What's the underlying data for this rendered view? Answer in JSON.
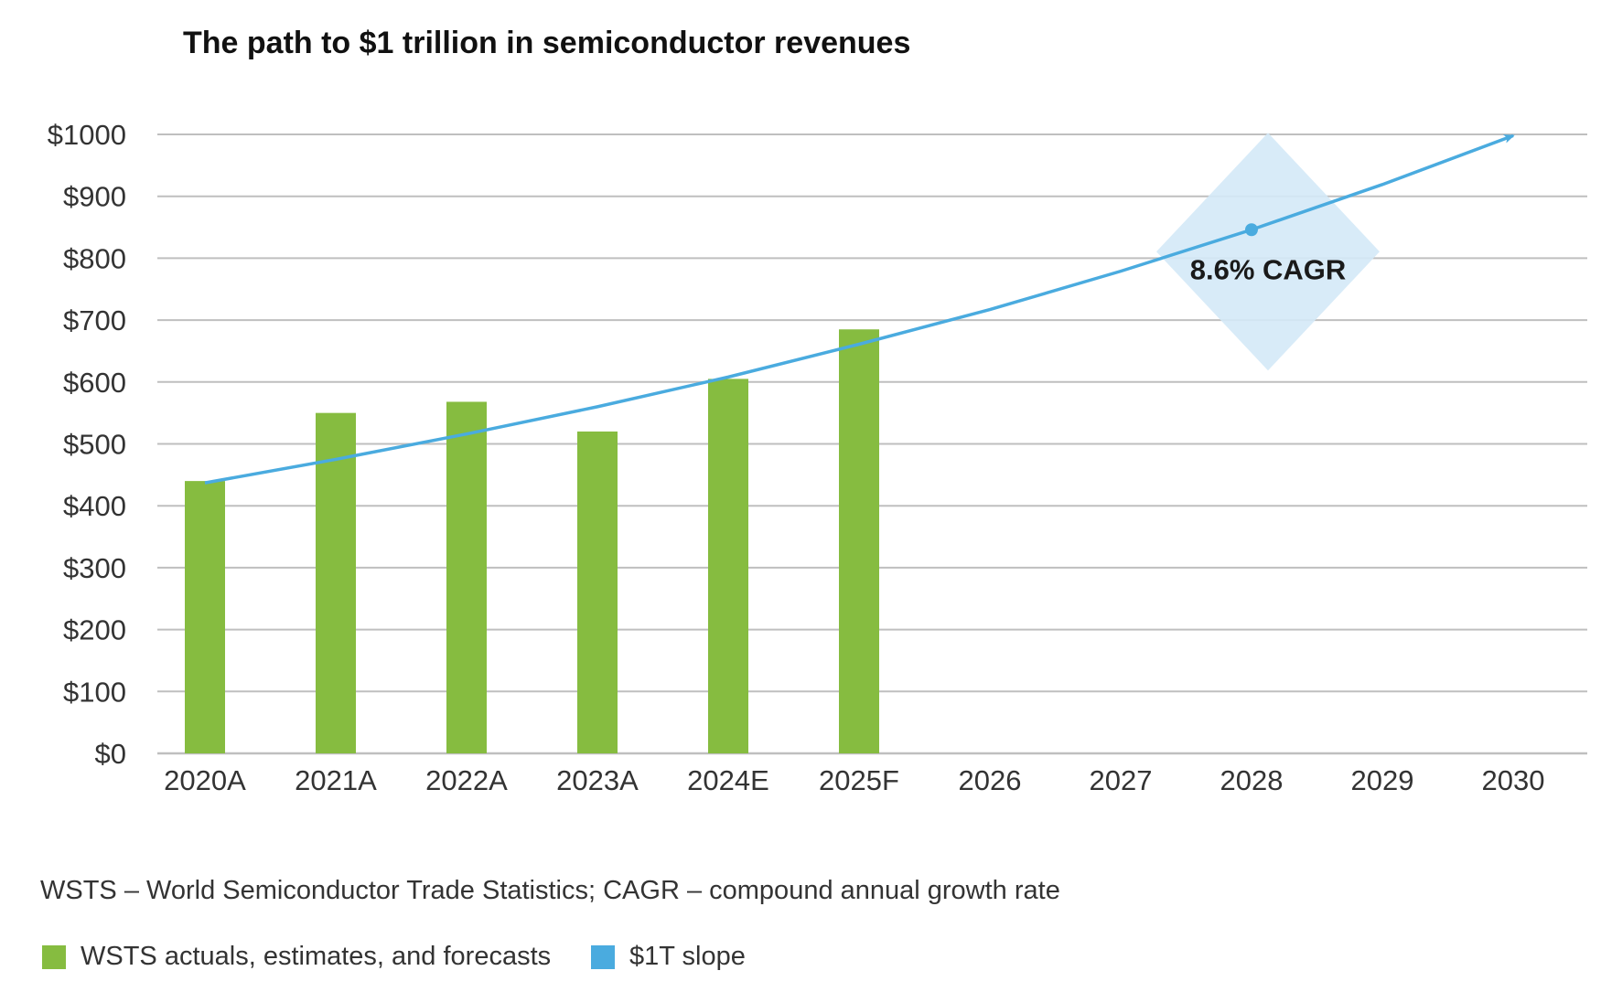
{
  "chart_data": {
    "type": "bar",
    "title": "The path to $1 trillion in semiconductor revenues",
    "categories": [
      "2020A",
      "2021A",
      "2022A",
      "2023A",
      "2024E",
      "2025F",
      "2026",
      "2027",
      "2028",
      "2029",
      "2030"
    ],
    "y_tick_labels": [
      "$0",
      "$100",
      "$200",
      "$300",
      "$400",
      "$500",
      "$600",
      "$700",
      "$800",
      "$900",
      "$1000"
    ],
    "ylim": [
      0,
      1000
    ],
    "grid": true,
    "series": [
      {
        "name": "WSTS actuals, estimates, and forecasts",
        "type": "bar",
        "color": "#86BC40",
        "values": [
          440,
          550,
          568,
          520,
          605,
          685,
          null,
          null,
          null,
          null,
          null
        ]
      },
      {
        "name": "$1T slope",
        "type": "line",
        "color": "#4AABDF",
        "values": [
          437,
          475,
          516,
          560,
          608,
          661,
          717,
          779,
          846,
          919,
          998
        ]
      }
    ],
    "annotation": {
      "text": "8.6% CAGR",
      "category": "2028",
      "value": 846
    },
    "legend_position": "bottom-left"
  },
  "footnote": "WSTS – World Semiconductor Trade Statistics; CAGR – compound annual growth rate",
  "legend": [
    {
      "label": "WSTS actuals, estimates, and forecasts",
      "color": "#86BC40"
    },
    {
      "label": "$1T slope",
      "color": "#4AABDF"
    }
  ],
  "colors": {
    "grid": "#bfbfbf",
    "axis_text": "#333333",
    "highlight": "#d4e9f7"
  }
}
